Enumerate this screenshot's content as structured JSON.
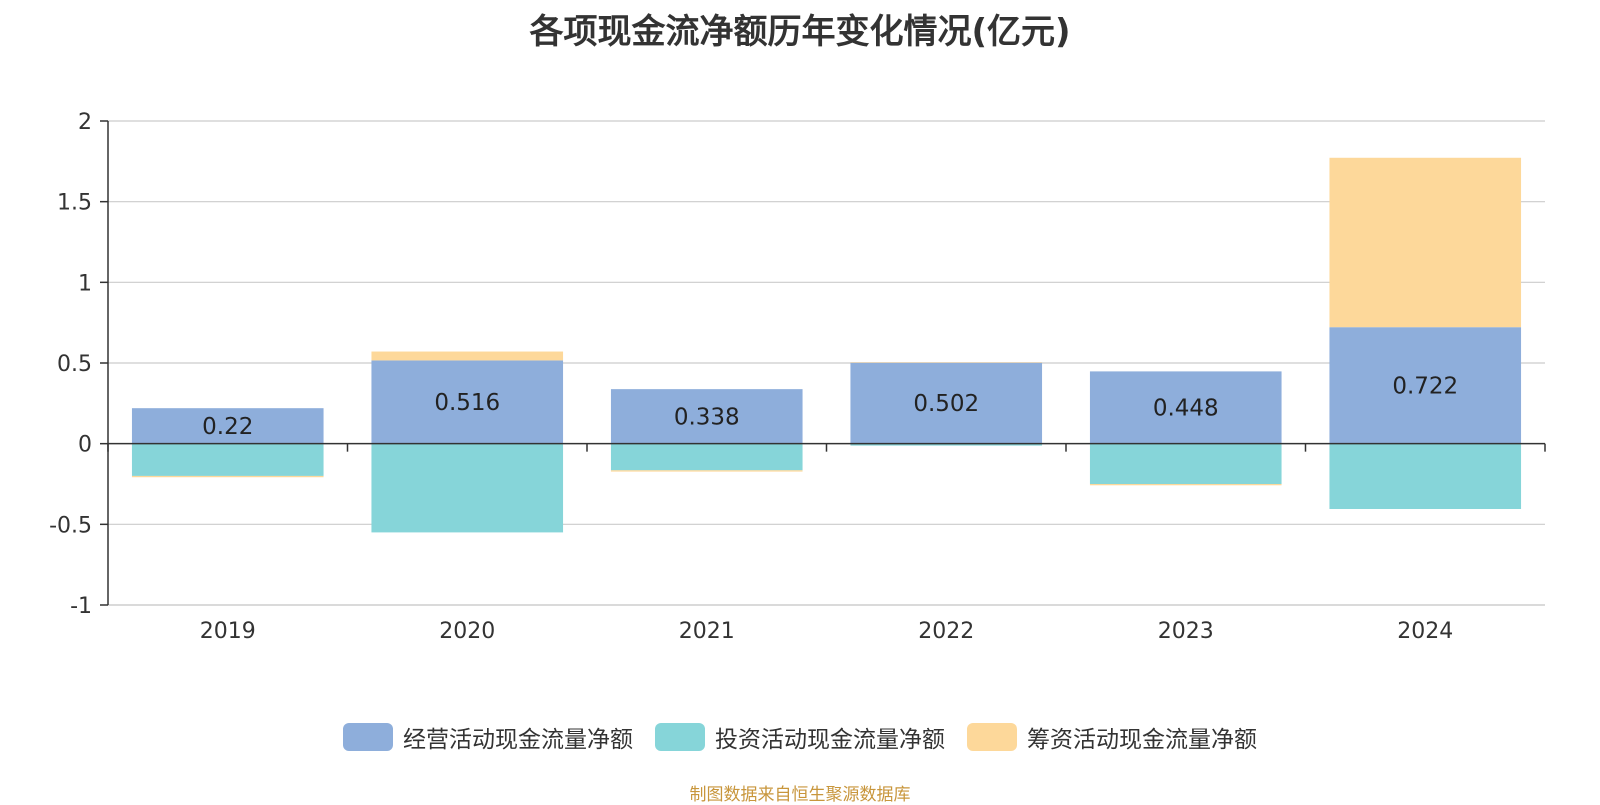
{
  "chart_data": {
    "type": "bar",
    "stacked": true,
    "title": "各项现金流净额历年变化情况(亿元)",
    "categories": [
      "2019",
      "2020",
      "2021",
      "2022",
      "2023",
      "2024"
    ],
    "ylim": [
      -1,
      2
    ],
    "yticks": [
      "2",
      "1.5",
      "1",
      "0.5",
      "0",
      "-0.5",
      "-1"
    ],
    "grid": true,
    "legend_position": "bottom",
    "series": [
      {
        "name": "经营活动现金流量净额",
        "color": "#8eaedb",
        "values": [
          0.22,
          0.516,
          0.338,
          0.502,
          0.448,
          0.722
        ],
        "labels": [
          "0.22",
          "0.516",
          "0.338",
          "0.502",
          "0.448",
          "0.722"
        ]
      },
      {
        "name": "投资活动现金流量净额",
        "color": "#86d5d9",
        "values": [
          -0.2,
          -0.55,
          -0.165,
          -0.012,
          -0.25,
          -0.405
        ]
      },
      {
        "name": "筹资活动现金流量净额",
        "color": "#fdd89a",
        "values": [
          -0.008,
          0.055,
          -0.008,
          0.003,
          -0.008,
          1.05
        ]
      }
    ],
    "source_note": "制图数据来自恒生聚源数据库"
  }
}
